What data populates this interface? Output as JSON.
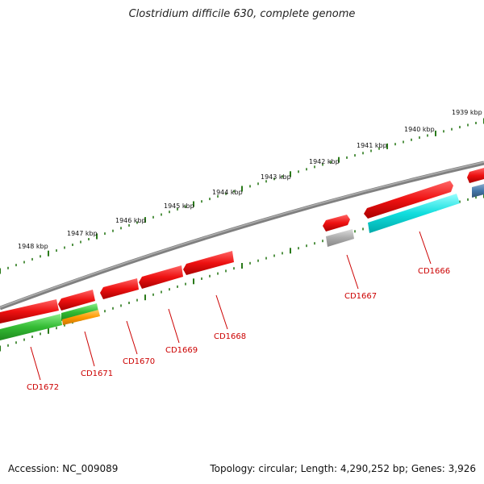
{
  "title": "Clostridium difficile 630, complete genome",
  "footer": {
    "accession": "Accession: NC_009089",
    "summary": "Topology: circular; Length: 4,290,252 bp; Genes: 3,926"
  },
  "scale_labels": [
    "1939 kbp",
    "1940 kbp",
    "1941 kbp",
    "1942 kbp",
    "1943 kbp",
    "1944 kbp",
    "1945 kbp",
    "1946 kbp",
    "1947 kbp",
    "1948 kbp"
  ],
  "gene_labels": [
    "CD1666",
    "CD1667",
    "CD1668",
    "CD1669",
    "CD1670",
    "CD1671",
    "CD1672"
  ],
  "colors": {
    "tick": "#2a7a1a",
    "backbone": "#808080",
    "gene_red": "#ee1111",
    "gene_cyan": "#11dddd",
    "gene_green": "#33bb33",
    "gene_orange": "#ff9900",
    "gene_gray": "#aaaaaa",
    "gene_blue": "#4477aa",
    "label_red": "#cc0000"
  }
}
